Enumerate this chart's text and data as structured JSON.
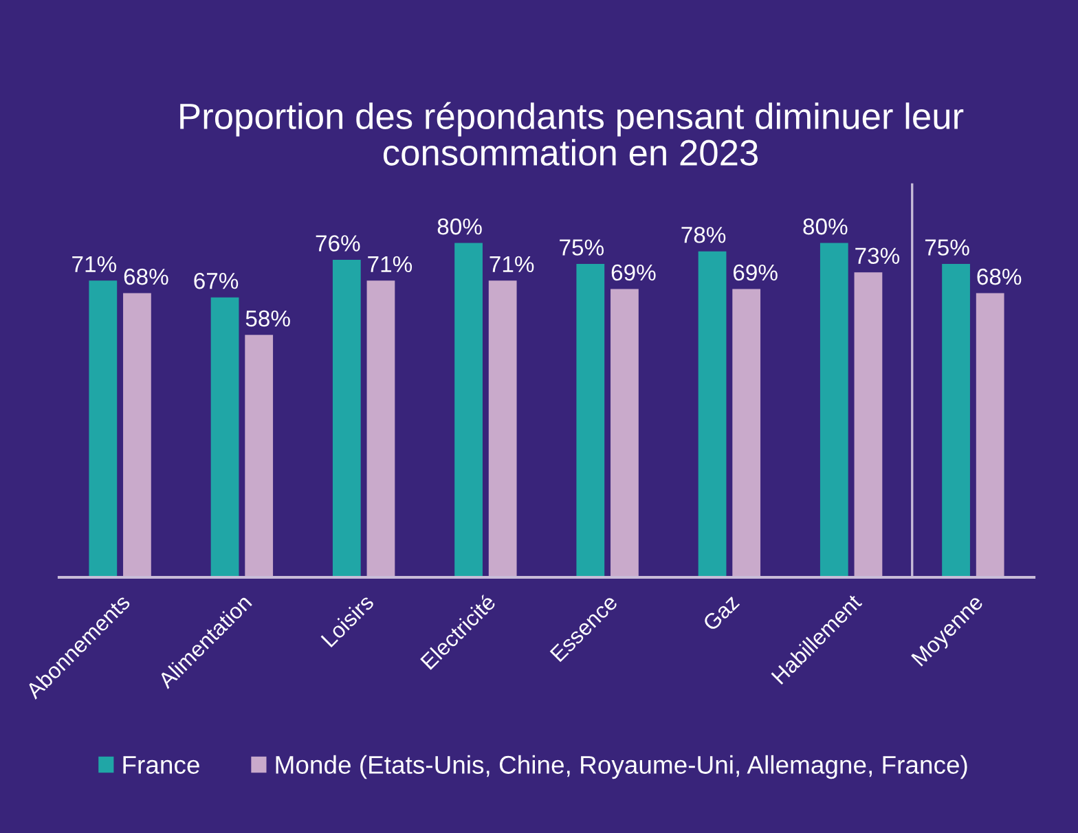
{
  "chart_data": {
    "type": "bar",
    "title": "Proportion des répondants pensant diminuer leur\nconsommation en 2023",
    "categories": [
      "Abonnements",
      "Alimentation",
      "Loisirs",
      "Electricité",
      "Essence",
      "Gaz",
      "Habillement",
      "Moyenne"
    ],
    "series": [
      {
        "name": "France",
        "color": "#20a6a6",
        "values": [
          71,
          67,
          76,
          80,
          75,
          78,
          80,
          75
        ],
        "value_labels": [
          "71%",
          "67%",
          "76%",
          "80%",
          "75%",
          "78%",
          "80%",
          "75%"
        ]
      },
      {
        "name": "Monde (Etats-Unis, Chine, Royaume-Uni, Allemagne, France)",
        "color": "#c9aacb",
        "values": [
          68,
          58,
          71,
          71,
          69,
          69,
          73,
          68
        ],
        "value_labels": [
          "68%",
          "58%",
          "71%",
          "71%",
          "69%",
          "69%",
          "73%",
          "68%"
        ]
      }
    ],
    "legend": "bottom"
  }
}
